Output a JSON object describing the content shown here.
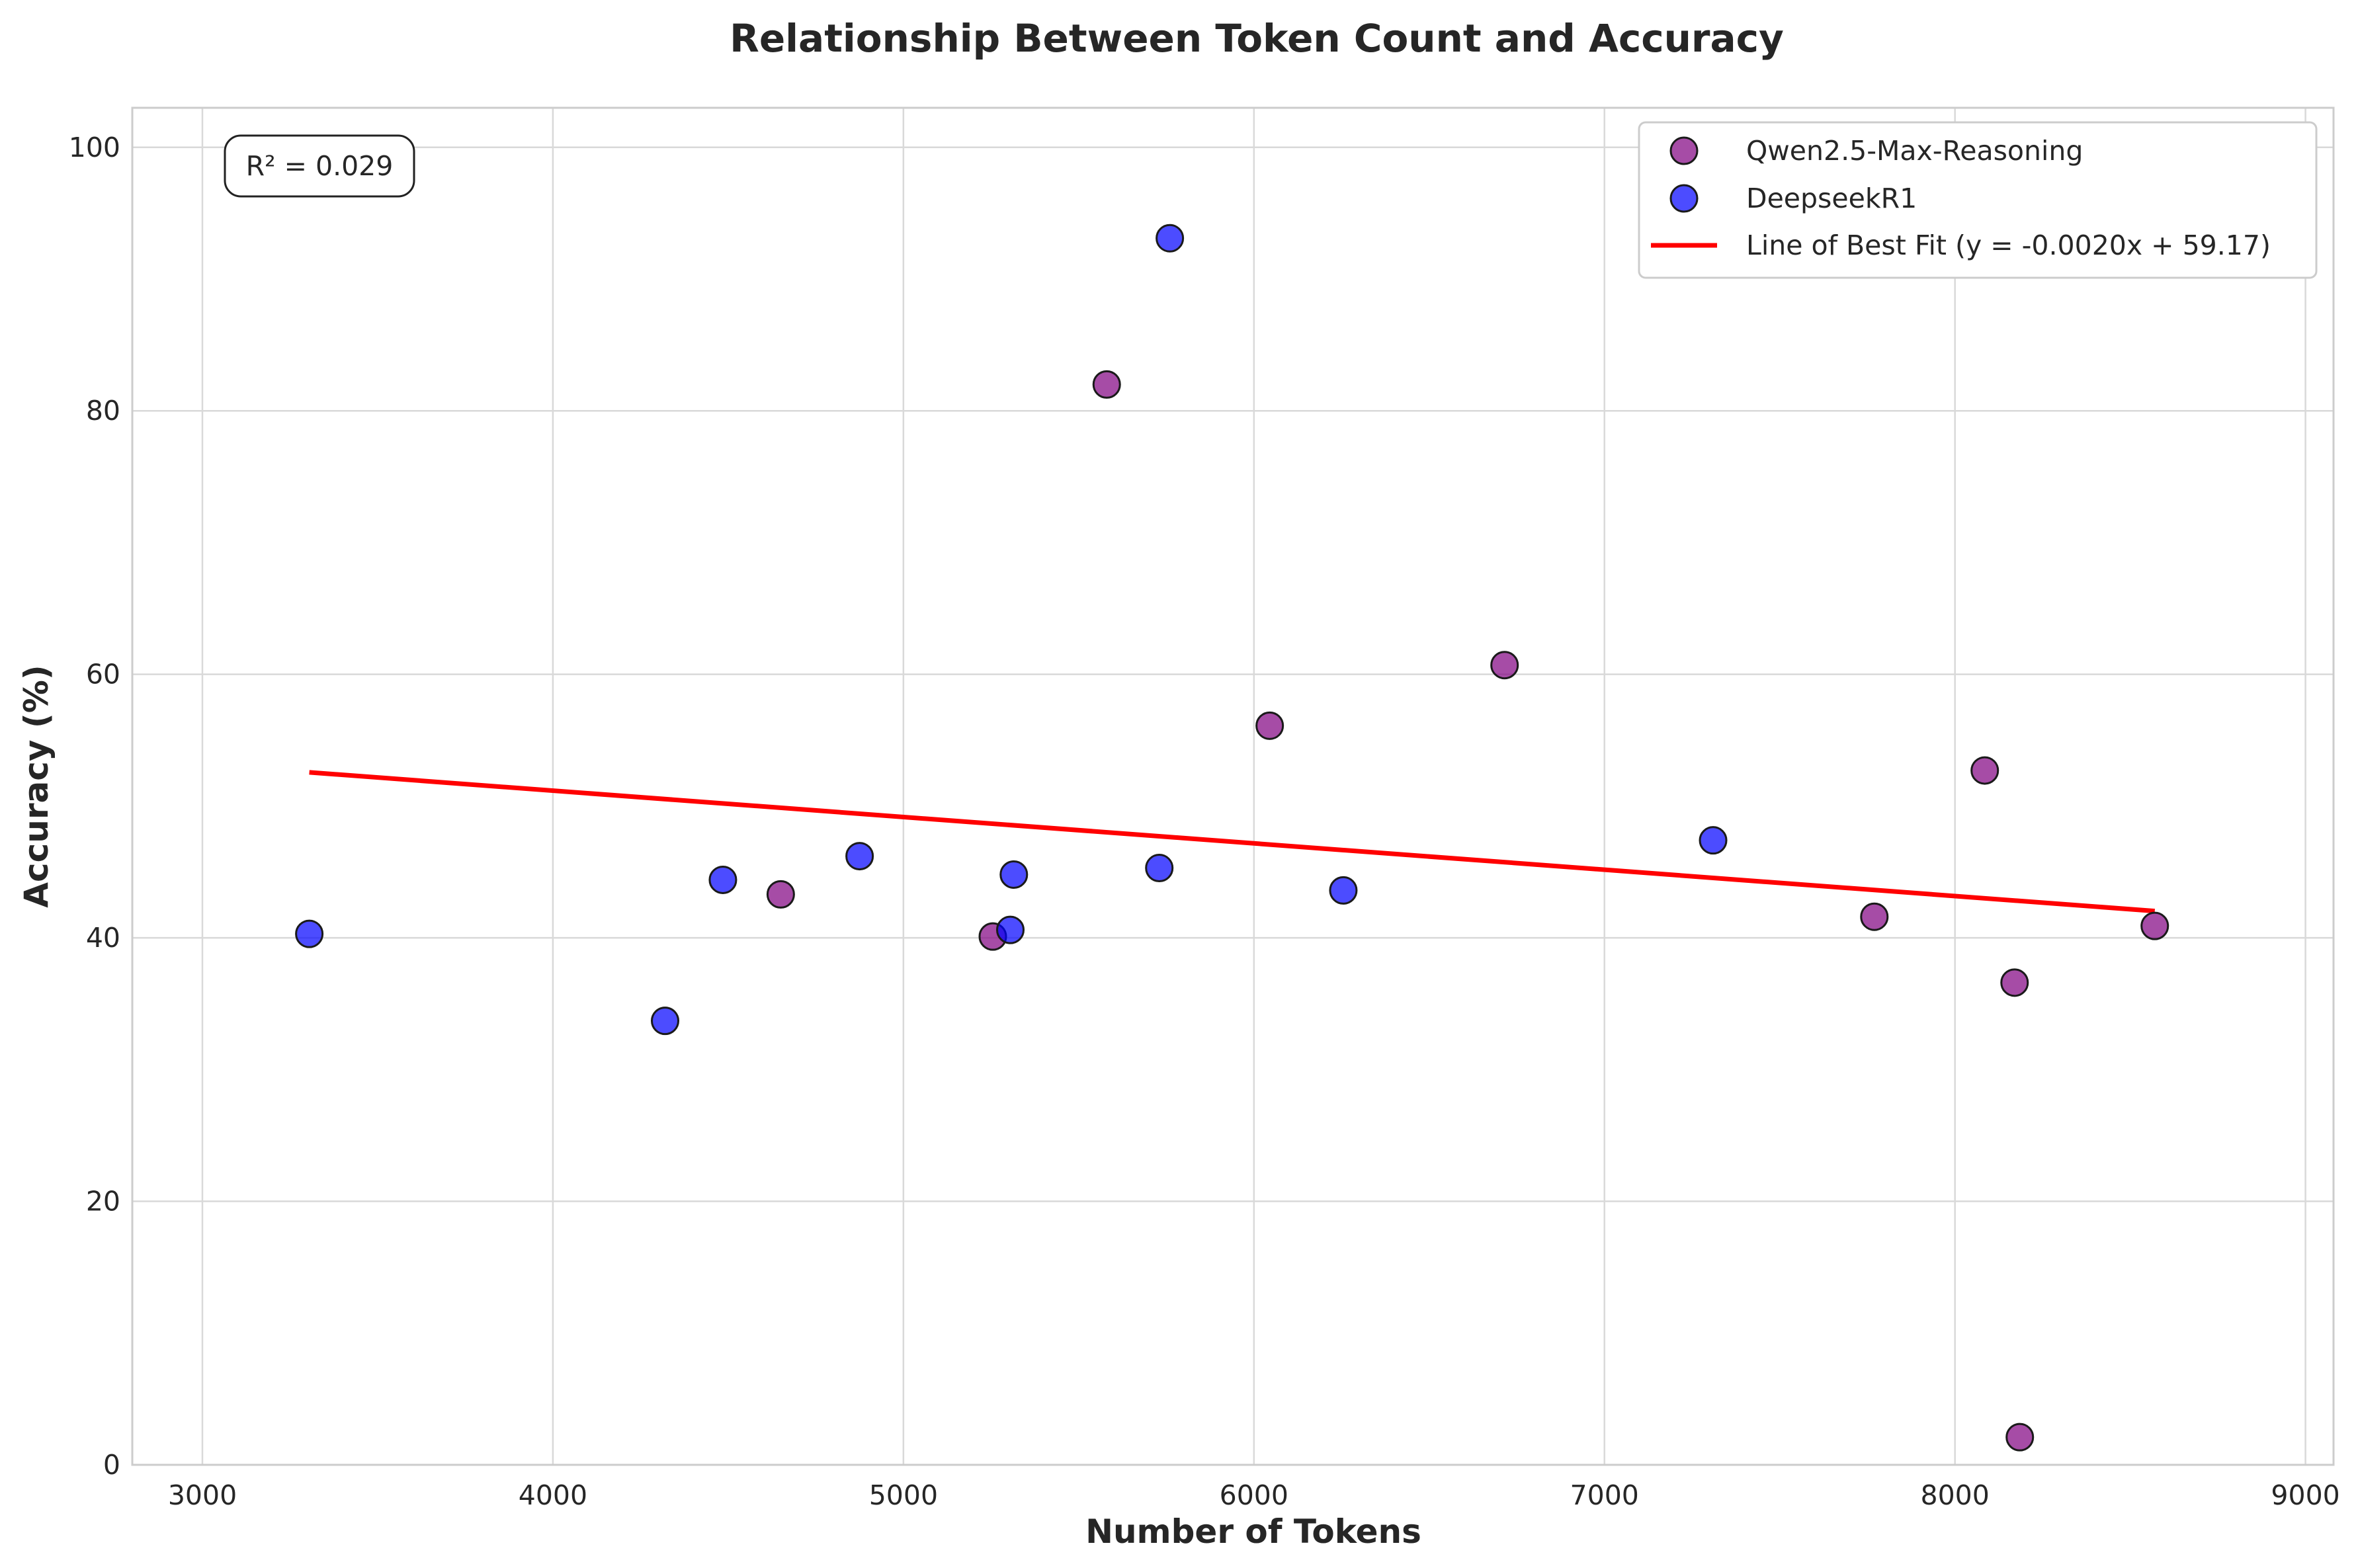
{
  "chart_data": {
    "type": "scatter",
    "title": "Relationship Between Token Count and Accuracy",
    "xlabel": "Number of Tokens",
    "ylabel": "Accuracy (%)",
    "xlim": [
      2800,
      9080
    ],
    "ylim": [
      0,
      103
    ],
    "xticks": [
      3000,
      4000,
      5000,
      6000,
      7000,
      8000,
      9000
    ],
    "yticks": [
      0,
      20,
      40,
      60,
      80,
      100
    ],
    "grid": true,
    "legend_position": "top-right",
    "series": [
      {
        "name": "Qwen2.5-Max-Reasoning",
        "color": "#800080",
        "points": [
          {
            "x": 4650,
            "y": 43.3
          },
          {
            "x": 5255,
            "y": 40.1
          },
          {
            "x": 5580,
            "y": 82.0
          },
          {
            "x": 6045,
            "y": 56.1
          },
          {
            "x": 6715,
            "y": 60.7
          },
          {
            "x": 7770,
            "y": 41.6
          },
          {
            "x": 8085,
            "y": 52.7
          },
          {
            "x": 8170,
            "y": 36.6
          },
          {
            "x": 8185,
            "y": 2.1
          },
          {
            "x": 8570,
            "y": 40.9
          }
        ]
      },
      {
        "name": "DeepseekR1",
        "color": "#0000ff",
        "points": [
          {
            "x": 3305,
            "y": 40.3
          },
          {
            "x": 4320,
            "y": 33.7
          },
          {
            "x": 4485,
            "y": 44.4
          },
          {
            "x": 4875,
            "y": 46.2
          },
          {
            "x": 5305,
            "y": 40.6
          },
          {
            "x": 5315,
            "y": 44.8
          },
          {
            "x": 5730,
            "y": 45.3
          },
          {
            "x": 5760,
            "y": 93.1
          },
          {
            "x": 6255,
            "y": 43.6
          },
          {
            "x": 7310,
            "y": 47.4
          }
        ]
      }
    ],
    "fit_line": {
      "name": "Line of Best Fit (y = -0.0020x + 59.17)",
      "color": "#ff0000",
      "slope": -0.002,
      "intercept": 59.17,
      "x_start": 3305,
      "x_end": 8570
    },
    "annotation": "R² = 0.029"
  }
}
